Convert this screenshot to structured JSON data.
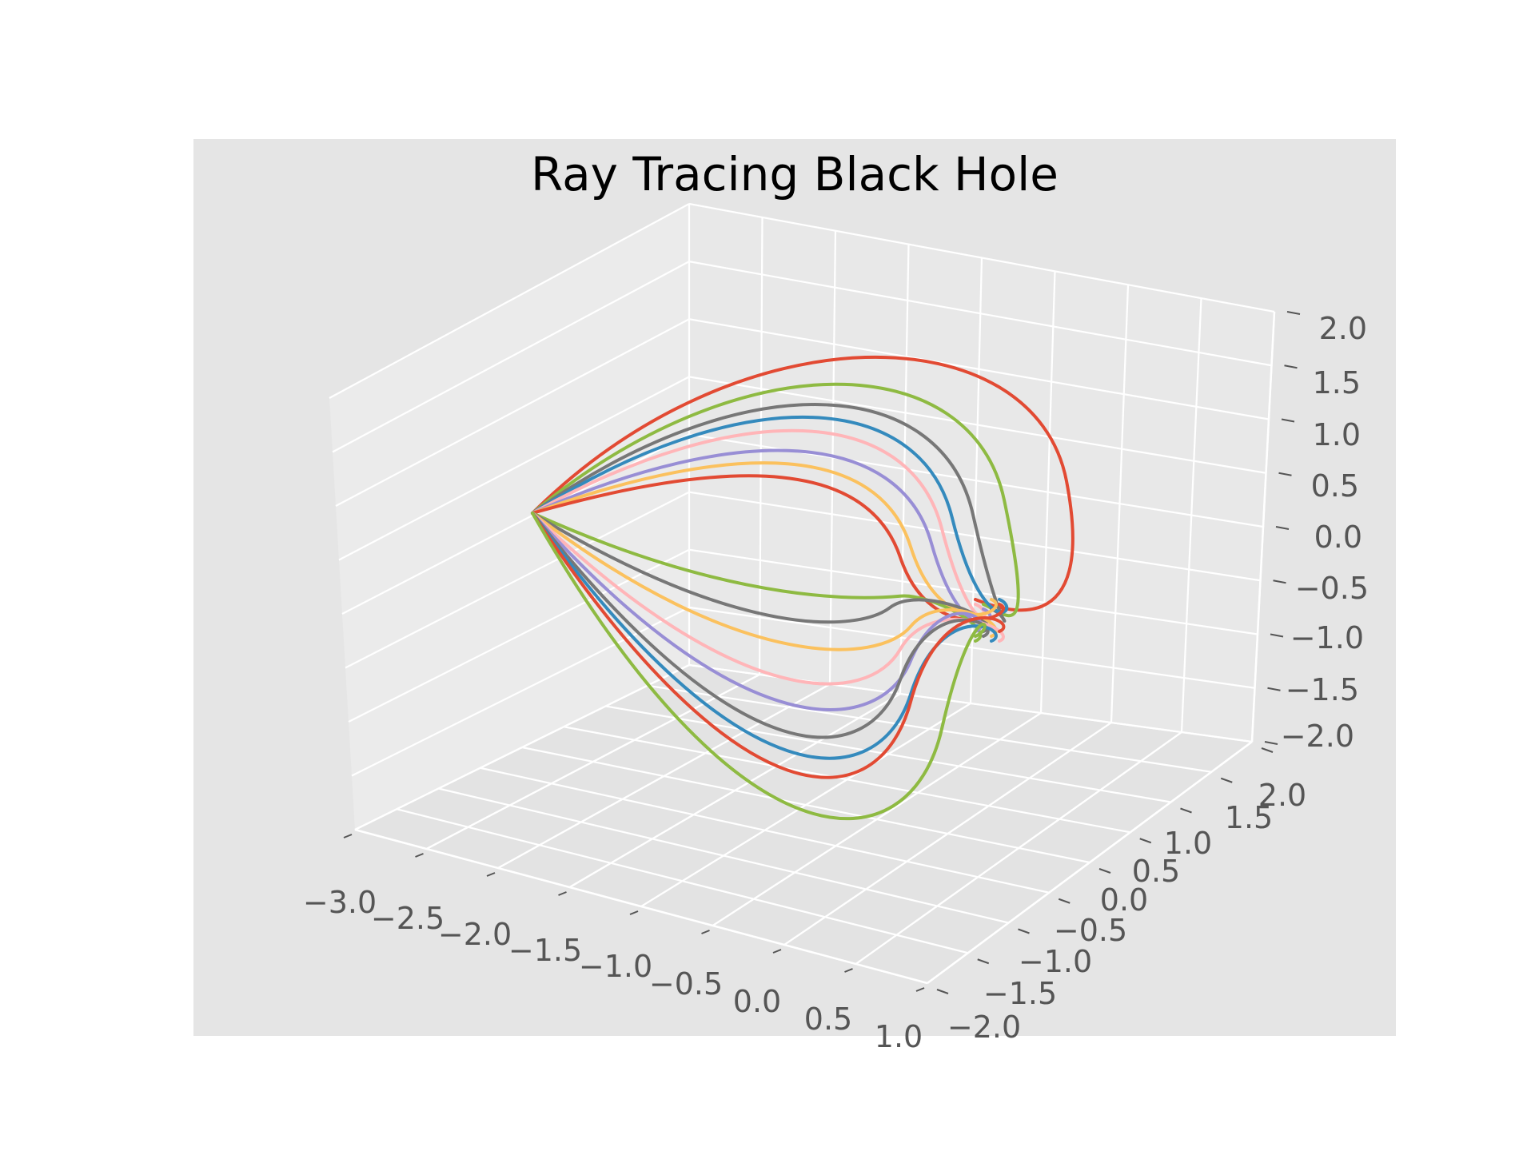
{
  "chart_data": {
    "type": "line",
    "projection": "3d",
    "title": "Ray Tracing Black Hole",
    "style": "ggplot",
    "grid": true,
    "xlabel": "",
    "ylabel": "",
    "zlabel": "",
    "xlim": [
      -3.0,
      1.0
    ],
    "ylim": [
      -2.0,
      2.0
    ],
    "zlim": [
      -2.0,
      2.0
    ],
    "x_ticks": [
      "−3.0",
      "−2.5",
      "−2.0",
      "−1.5",
      "−1.0",
      "−0.5",
      "0.0",
      "0.5",
      "1.0"
    ],
    "y_ticks": [
      "−2.0",
      "−1.5",
      "−1.0",
      "−0.5",
      "0.0",
      "0.5",
      "1.0",
      "1.5",
      "2.0"
    ],
    "z_ticks": [
      "−2.0",
      "−1.5",
      "−1.0",
      "−0.5",
      "0.0",
      "0.5",
      "1.0",
      "1.5",
      "2.0"
    ],
    "source_point": [
      -2.0,
      0.0,
      0.0
    ],
    "black_hole_center": [
      0.0,
      0.0,
      -0.8
    ],
    "ray_colors": [
      "#E24A33",
      "#8EBA42",
      "#777777",
      "#348ABD",
      "#FFB5B8",
      "#988ED5",
      "#FBC15E"
    ],
    "rays_outer_extent": [
      {
        "color": "#E24A33",
        "z_peak": 1.05,
        "x_reach": 0.9
      },
      {
        "color": "#8EBA42",
        "z_peak": 0.85,
        "x_reach": 0.6
      },
      {
        "color": "#777777",
        "z_peak": 0.7,
        "x_reach": 0.45
      },
      {
        "color": "#348ABD",
        "z_peak": 0.6,
        "x_reach": 0.35
      },
      {
        "color": "#FFB5B8",
        "z_peak": 0.5,
        "x_reach": 0.3
      },
      {
        "color": "#988ED5",
        "z_peak": 0.35,
        "x_reach": 0.25
      },
      {
        "color": "#FBC15E",
        "z_peak": 0.25,
        "x_reach": 0.15
      },
      {
        "color": "#E24A33",
        "z_peak": 0.15,
        "x_reach": 0.1
      },
      {
        "color": "#8EBA42",
        "z_peak": -0.1,
        "x_reach": 0.1
      },
      {
        "color": "#777777",
        "z_peak": -0.3,
        "x_reach": 0.05
      },
      {
        "color": "#FBC15E",
        "z_peak": -0.5,
        "x_reach": 0.15
      },
      {
        "color": "#FFB5B8",
        "z_peak": -0.75,
        "x_reach": 0.1
      },
      {
        "color": "#988ED5",
        "z_peak": -0.95,
        "x_reach": 0.15
      },
      {
        "color": "#777777",
        "z_peak": -1.15,
        "x_reach": 0.1
      },
      {
        "color": "#348ABD",
        "z_peak": -1.3,
        "x_reach": 0.15
      },
      {
        "color": "#E24A33",
        "z_peak": -1.45,
        "x_reach": 0.15
      },
      {
        "color": "#8EBA42",
        "z_peak": -1.75,
        "x_reach": 0.3
      }
    ]
  }
}
